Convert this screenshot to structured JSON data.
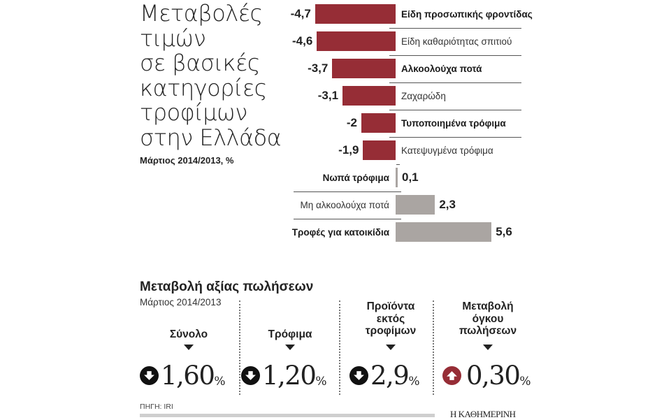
{
  "title_lines": [
    "Μεταβολές",
    "τιμών",
    "σε βασικές",
    "κατηγορίες",
    "τροφίμων",
    "στην Ελλάδα"
  ],
  "subtitle": "Μάρτιος 2014/2013, %",
  "colors": {
    "negative": "#962d36",
    "positive": "#aaa5a2",
    "up_icon": "#962d36",
    "down_icon": "#111111"
  },
  "chart_data": [
    {
      "type": "bar",
      "orientation": "horizontal",
      "title": "Μεταβολές τιμών σε βασικές κατηγορίες τροφίμων στην Ελλάδα",
      "subtitle": "Μάρτιος 2014/2013, %",
      "categories": [
        "Είδη προσωπικής φροντίδας",
        "Είδη καθαριότητας σπιτιού",
        "Αλκοολούχα ποτά",
        "Ζαχαρώδη",
        "Τυποποιημένα τρόφιμα",
        "Κατεψυγμένα τρόφιμα",
        "Νωπά τρόφιμα",
        "Μη αλκοολούχα ποτά",
        "Τροφές για κατοικίδια"
      ],
      "values": [
        -4.7,
        -4.6,
        -3.7,
        -3.1,
        -2.0,
        -1.9,
        0.1,
        2.3,
        5.6
      ],
      "value_labels": [
        "-4,7",
        "-4,6",
        "-3,7",
        "-3,1",
        "-2",
        "-1,9",
        "0,1",
        "2,3",
        "5,6"
      ],
      "xlabel": "",
      "ylabel": "%",
      "grid": false,
      "legend": null
    },
    {
      "type": "table",
      "title": "Μεταβολή αξίας πωλήσεων",
      "subtitle": "Μάρτιος 2014/2013",
      "categories": [
        "Σύνολο",
        "Τρόφιμα",
        "Προϊόντα εκτός τροφίμων",
        "Μεταβολή όγκου πωλήσεων"
      ],
      "values": [
        -1.6,
        -1.2,
        -2.9,
        0.3
      ],
      "directions": [
        "down",
        "down",
        "down",
        "up"
      ]
    }
  ],
  "bars": [
    {
      "label": "Είδη προσωπικής φροντίδας",
      "value": "-4,7",
      "num": -4.7,
      "bold": true
    },
    {
      "label": "Είδη καθαριότητας σπιτιού",
      "value": "-4,6",
      "num": -4.6,
      "bold": false
    },
    {
      "label": "Αλκοολούχα ποτά",
      "value": "-3,7",
      "num": -3.7,
      "bold": true
    },
    {
      "label": "Ζαχαρώδη",
      "value": "-3,1",
      "num": -3.1,
      "bold": false
    },
    {
      "label": "Τυποποιημένα τρόφιμα",
      "value": "-2",
      "num": -2.0,
      "bold": true
    },
    {
      "label": "Κατεψυγμένα τρόφιμα",
      "value": "-1,9",
      "num": -1.9,
      "bold": false
    },
    {
      "label": "Νωπά τρόφιμα",
      "value": "0,1",
      "num": 0.1,
      "bold": true
    },
    {
      "label": "Μη αλκοολούχα ποτά",
      "value": "2,3",
      "num": 2.3,
      "bold": false
    },
    {
      "label": "Τροφές για κατοικίδια",
      "value": "5,6",
      "num": 5.6,
      "bold": true
    }
  ],
  "sales": {
    "title": "Μεταβολή αξίας πωλήσεων",
    "subtitle": "Μάρτιος 2014/2013",
    "items": [
      {
        "head": [
          "Σύνολο"
        ],
        "value": "1,60",
        "pct": "%",
        "dir": "down"
      },
      {
        "head": [
          "Τρόφιμα"
        ],
        "value": "1,20",
        "pct": "%",
        "dir": "down"
      },
      {
        "head": [
          "Προϊόντα",
          "εκτός",
          "τροφίμων"
        ],
        "value": "2,9",
        "pct": "%",
        "dir": "down"
      },
      {
        "head": [
          "Μεταβολή",
          "όγκου",
          "πωλήσεων"
        ],
        "value": "0,30",
        "pct": "%",
        "dir": "up"
      }
    ]
  },
  "footer": {
    "source": "ΠΗΓΗ: IRI",
    "brand": "Η ΚΑΘΗΜΕΡΙΝΗ"
  }
}
